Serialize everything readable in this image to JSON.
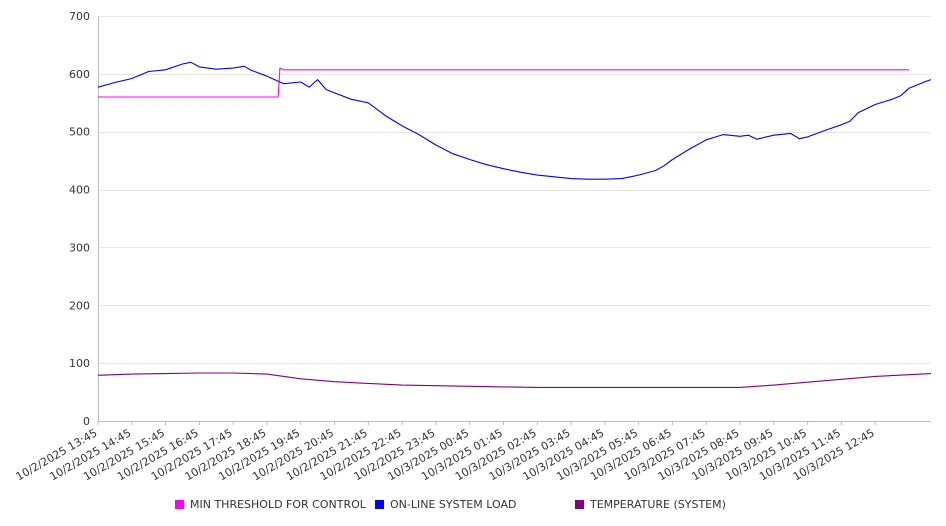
{
  "chart_data": {
    "type": "line",
    "title": "",
    "xlabel": "",
    "ylabel": "",
    "ylim": [
      0,
      700
    ],
    "yticks": [
      0,
      100,
      200,
      300,
      400,
      500,
      600,
      700
    ],
    "grid": true,
    "legend_position": "bottom",
    "x_start": "10/2/2025 13:45",
    "x_end": "10/3/2025 13:45",
    "x_tick_labels": [
      "10/2/2025 13:45",
      "10/2/2025 14:45",
      "10/2/2025 15:45",
      "10/2/2025 16:45",
      "10/2/2025 17:45",
      "10/2/2025 18:45",
      "10/2/2025 19:45",
      "10/2/2025 20:45",
      "10/2/2025 21:45",
      "10/2/2025 22:45",
      "10/2/2025 23:45",
      "10/3/2025 00:45",
      "10/3/2025 01:45",
      "10/3/2025 02:45",
      "10/3/2025 03:45",
      "10/3/2025 04:45",
      "10/3/2025 05:45",
      "10/3/2025 06:45",
      "10/3/2025 07:45",
      "10/3/2025 08:45",
      "10/3/2025 09:45",
      "10/3/2025 10:45",
      "10/3/2025 11:45",
      "10/3/2025 12:45"
    ],
    "series": [
      {
        "name": "MIN THRESHOLD FOR CONTROL",
        "color": "#ff00ff",
        "points": [
          [
            "10/2/2025 13:45",
            560
          ],
          [
            "10/2/2025 17:45",
            560
          ],
          [
            "10/2/2025 18:45",
            560
          ],
          [
            "10/2/2025 19:05",
            560
          ],
          [
            "10/2/2025 19:08",
            610
          ],
          [
            "10/2/2025 19:15",
            607
          ],
          [
            "10/3/2025 13:45",
            607
          ]
        ]
      },
      {
        "name": "ON-LINE SYSTEM LOAD",
        "color": "#0000ff",
        "points": [
          [
            "10/2/2025 13:45",
            577
          ],
          [
            "10/2/2025 14:15",
            585
          ],
          [
            "10/2/2025 14:45",
            592
          ],
          [
            "10/2/2025 15:15",
            604
          ],
          [
            "10/2/2025 15:45",
            607
          ],
          [
            "10/2/2025 16:15",
            617
          ],
          [
            "10/2/2025 16:30",
            620
          ],
          [
            "10/2/2025 16:45",
            612
          ],
          [
            "10/2/2025 17:15",
            608
          ],
          [
            "10/2/2025 17:45",
            610
          ],
          [
            "10/2/2025 18:05",
            613
          ],
          [
            "10/2/2025 18:15",
            607
          ],
          [
            "10/2/2025 18:45",
            596
          ],
          [
            "10/2/2025 19:15",
            583
          ],
          [
            "10/2/2025 19:45",
            586
          ],
          [
            "10/2/2025 20:00",
            577
          ],
          [
            "10/2/2025 20:15",
            590
          ],
          [
            "10/2/2025 20:30",
            573
          ],
          [
            "10/2/2025 20:45",
            567
          ],
          [
            "10/2/2025 21:15",
            556
          ],
          [
            "10/2/2025 21:45",
            550
          ],
          [
            "10/2/2025 22:15",
            528
          ],
          [
            "10/2/2025 22:45",
            510
          ],
          [
            "10/2/2025 23:15",
            495
          ],
          [
            "10/2/2025 23:45",
            477
          ],
          [
            "10/3/2025 00:15",
            462
          ],
          [
            "10/3/2025 00:45",
            452
          ],
          [
            "10/3/2025 01:15",
            443
          ],
          [
            "10/3/2025 01:45",
            436
          ],
          [
            "10/3/2025 02:15",
            430
          ],
          [
            "10/3/2025 02:45",
            425
          ],
          [
            "10/3/2025 03:15",
            422
          ],
          [
            "10/3/2025 03:45",
            419
          ],
          [
            "10/3/2025 04:15",
            418
          ],
          [
            "10/3/2025 04:45",
            418
          ],
          [
            "10/3/2025 05:15",
            419
          ],
          [
            "10/3/2025 05:45",
            425
          ],
          [
            "10/3/2025 06:15",
            433
          ],
          [
            "10/3/2025 06:30",
            441
          ],
          [
            "10/3/2025 06:45",
            452
          ],
          [
            "10/3/2025 07:15",
            470
          ],
          [
            "10/3/2025 07:45",
            486
          ],
          [
            "10/3/2025 08:15",
            495
          ],
          [
            "10/3/2025 08:45",
            492
          ],
          [
            "10/3/2025 09:00",
            494
          ],
          [
            "10/3/2025 09:15",
            487
          ],
          [
            "10/3/2025 09:45",
            494
          ],
          [
            "10/3/2025 10:15",
            497
          ],
          [
            "10/3/2025 10:30",
            488
          ],
          [
            "10/3/2025 10:45",
            491
          ],
          [
            "10/3/2025 11:15",
            502
          ],
          [
            "10/3/2025 11:45",
            512
          ],
          [
            "10/3/2025 12:00",
            518
          ],
          [
            "10/3/2025 12:15",
            533
          ],
          [
            "10/3/2025 12:45",
            547
          ],
          [
            "10/3/2025 13:15",
            556
          ],
          [
            "10/3/2025 13:30",
            562
          ],
          [
            "10/3/2025 13:45",
            575
          ],
          [
            "10/3/2025 14:15",
            587
          ],
          [
            "10/3/2025 14:25",
            590
          ]
        ]
      },
      {
        "name": "TEMPERATURE (SYSTEM)",
        "color": "#800080",
        "points": [
          [
            "10/2/2025 13:45",
            79
          ],
          [
            "10/2/2025 14:45",
            81
          ],
          [
            "10/2/2025 15:45",
            82
          ],
          [
            "10/2/2025 16:45",
            83
          ],
          [
            "10/2/2025 17:45",
            83
          ],
          [
            "10/2/2025 18:45",
            81
          ],
          [
            "10/2/2025 19:45",
            73
          ],
          [
            "10/2/2025 20:45",
            68
          ],
          [
            "10/2/2025 21:45",
            65
          ],
          [
            "10/2/2025 22:45",
            62
          ],
          [
            "10/2/2025 23:45",
            61
          ],
          [
            "10/3/2025 00:45",
            60
          ],
          [
            "10/3/2025 01:45",
            59
          ],
          [
            "10/3/2025 02:45",
            58
          ],
          [
            "10/3/2025 03:45",
            58
          ],
          [
            "10/3/2025 04:45",
            58
          ],
          [
            "10/3/2025 05:45",
            58
          ],
          [
            "10/3/2025 06:45",
            58
          ],
          [
            "10/3/2025 07:45",
            58
          ],
          [
            "10/3/2025 08:45",
            58
          ],
          [
            "10/3/2025 09:45",
            62
          ],
          [
            "10/3/2025 10:45",
            67
          ],
          [
            "10/3/2025 11:45",
            72
          ],
          [
            "10/3/2025 12:45",
            77
          ],
          [
            "10/3/2025 13:45",
            80
          ],
          [
            "10/3/2025 14:25",
            82
          ]
        ]
      }
    ]
  }
}
